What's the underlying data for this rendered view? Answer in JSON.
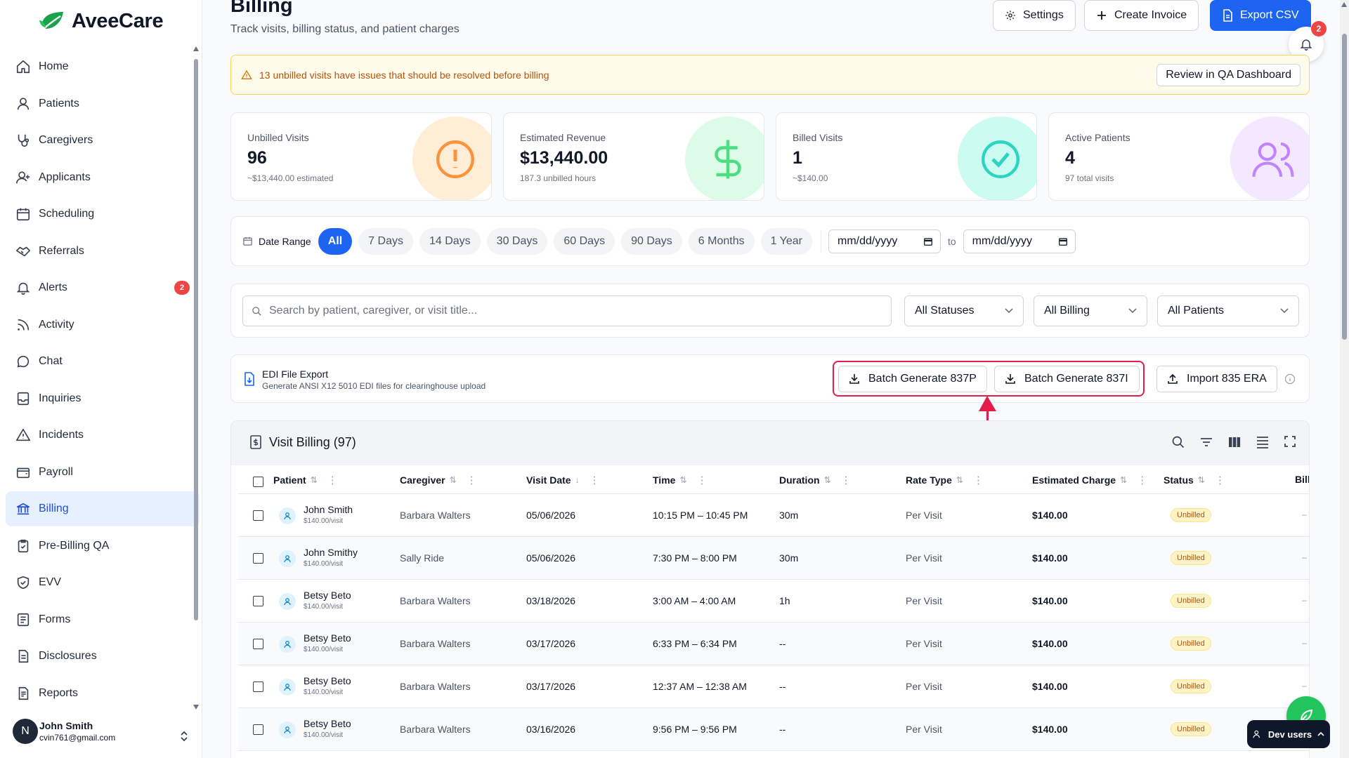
{
  "app": {
    "name": "AveeCare"
  },
  "sidebar": {
    "items": [
      {
        "label": "Home",
        "icon": "home-icon"
      },
      {
        "label": "Patients",
        "icon": "user-icon"
      },
      {
        "label": "Caregivers",
        "icon": "stethoscope-icon"
      },
      {
        "label": "Applicants",
        "icon": "user-plus-icon"
      },
      {
        "label": "Scheduling",
        "icon": "calendar-icon"
      },
      {
        "label": "Referrals",
        "icon": "handshake-icon"
      },
      {
        "label": "Alerts",
        "icon": "bell-icon",
        "badge": "2"
      },
      {
        "label": "Activity",
        "icon": "rss-icon"
      },
      {
        "label": "Chat",
        "icon": "chat-icon"
      },
      {
        "label": "Inquiries",
        "icon": "inbox-icon"
      },
      {
        "label": "Incidents",
        "icon": "warning-icon"
      },
      {
        "label": "Payroll",
        "icon": "wallet-icon"
      },
      {
        "label": "Billing",
        "icon": "bank-icon",
        "active": true
      },
      {
        "label": "Pre-Billing QA",
        "icon": "clipboard-check-icon"
      },
      {
        "label": "EVV",
        "icon": "shield-check-icon"
      },
      {
        "label": "Forms",
        "icon": "form-icon"
      },
      {
        "label": "Disclosures",
        "icon": "document-icon"
      },
      {
        "label": "Reports",
        "icon": "report-icon"
      }
    ],
    "user": {
      "initial": "N",
      "name": "John Smith",
      "email": "cvin761@gmail.com"
    }
  },
  "header": {
    "title": "Billing",
    "subtitle": "Track visits, billing status, and patient charges",
    "settings_label": "Settings",
    "create_invoice_label": "Create Invoice",
    "export_label": "Export CSV",
    "notification_count": "2"
  },
  "alert": {
    "text": "13 unbilled visits have issues that should be resolved before billing",
    "button_label": "Review in QA Dashboard"
  },
  "stats": [
    {
      "label": "Unbilled Visits",
      "value": "96",
      "sub": "~$13,440.00 estimated",
      "icon": "exclamation-circle-icon",
      "circle": "#ffedd5",
      "iconColor": "#fb923c"
    },
    {
      "label": "Estimated Revenue",
      "value": "$13,440.00",
      "sub": "187.3 unbilled hours",
      "icon": "dollar-icon",
      "circle": "#dcfce7",
      "iconColor": "#4ade80"
    },
    {
      "label": "Billed Visits",
      "value": "1",
      "sub": "~$140.00",
      "icon": "check-circle-icon",
      "circle": "#ccfbf1",
      "iconColor": "#2dd4bf"
    },
    {
      "label": "Active Patients",
      "value": "4",
      "sub": "97 total visits",
      "icon": "users-icon",
      "circle": "#f3e8ff",
      "iconColor": "#c084fc"
    }
  ],
  "date_filter": {
    "label": "Date Range",
    "chips": [
      "All",
      "7 Days",
      "14 Days",
      "30 Days",
      "60 Days",
      "90 Days",
      "6 Months",
      "1 Year"
    ],
    "active": "All",
    "from_placeholder": "mm/dd/yyyy",
    "to_label": "to",
    "to_placeholder": "mm/dd/yyyy"
  },
  "filters": {
    "search_placeholder": "Search by patient, caregiver, or visit title...",
    "status": "All Statuses",
    "billing": "All Billing",
    "patients": "All Patients"
  },
  "edi": {
    "title": "EDI File Export",
    "subtitle": "Generate ANSI X12 5010 EDI files for clearinghouse upload",
    "btn_837p": "Batch Generate 837P",
    "btn_837i": "Batch Generate 837I",
    "btn_835": "Import 835 ERA"
  },
  "table": {
    "title": "Visit Billing (97)",
    "columns": [
      "Patient",
      "Caregiver",
      "Visit Date",
      "Time",
      "Duration",
      "Rate Type",
      "Estimated Charge",
      "Status",
      "Bill"
    ],
    "rows": [
      {
        "patient": "John Smith",
        "rate": "$140.00/visit",
        "caregiver": "Barbara Walters",
        "date": "05/06/2026",
        "time": "10:15 PM – 10:45 PM",
        "duration": "30m",
        "rate_type": "Per Visit",
        "charge": "$140.00",
        "status": "Unbilled",
        "bill": "–"
      },
      {
        "patient": "John Smithy",
        "rate": "$140.00/visit",
        "caregiver": "Sally Ride",
        "date": "05/06/2026",
        "time": "7:30 PM – 8:00 PM",
        "duration": "30m",
        "rate_type": "Per Visit",
        "charge": "$140.00",
        "status": "Unbilled",
        "bill": "–"
      },
      {
        "patient": "Betsy Beto",
        "rate": "$140.00/visit",
        "caregiver": "Barbara Walters",
        "date": "03/18/2026",
        "time": "3:00 AM – 4:00 AM",
        "duration": "1h",
        "rate_type": "Per Visit",
        "charge": "$140.00",
        "status": "Unbilled",
        "bill": "–"
      },
      {
        "patient": "Betsy Beto",
        "rate": "$140.00/visit",
        "caregiver": "Barbara Walters",
        "date": "03/17/2026",
        "time": "6:33 PM – 6:34 PM",
        "duration": "--",
        "rate_type": "Per Visit",
        "charge": "$140.00",
        "status": "Unbilled",
        "bill": "–"
      },
      {
        "patient": "Betsy Beto",
        "rate": "$140.00/visit",
        "caregiver": "Barbara Walters",
        "date": "03/17/2026",
        "time": "12:37 AM – 12:38 AM",
        "duration": "--",
        "rate_type": "Per Visit",
        "charge": "$140.00",
        "status": "Unbilled",
        "bill": "–"
      },
      {
        "patient": "Betsy Beto",
        "rate": "$140.00/visit",
        "caregiver": "Barbara Walters",
        "date": "03/16/2026",
        "time": "9:56 PM – 9:56 PM",
        "duration": "--",
        "rate_type": "Per Visit",
        "charge": "$140.00",
        "status": "Unbilled",
        "bill": "–"
      }
    ]
  },
  "dev": {
    "label": "Dev users"
  },
  "colors": {
    "accent": "#1d64f0",
    "highlight": "#e11d48",
    "warning_bg": "#fffbeb"
  }
}
